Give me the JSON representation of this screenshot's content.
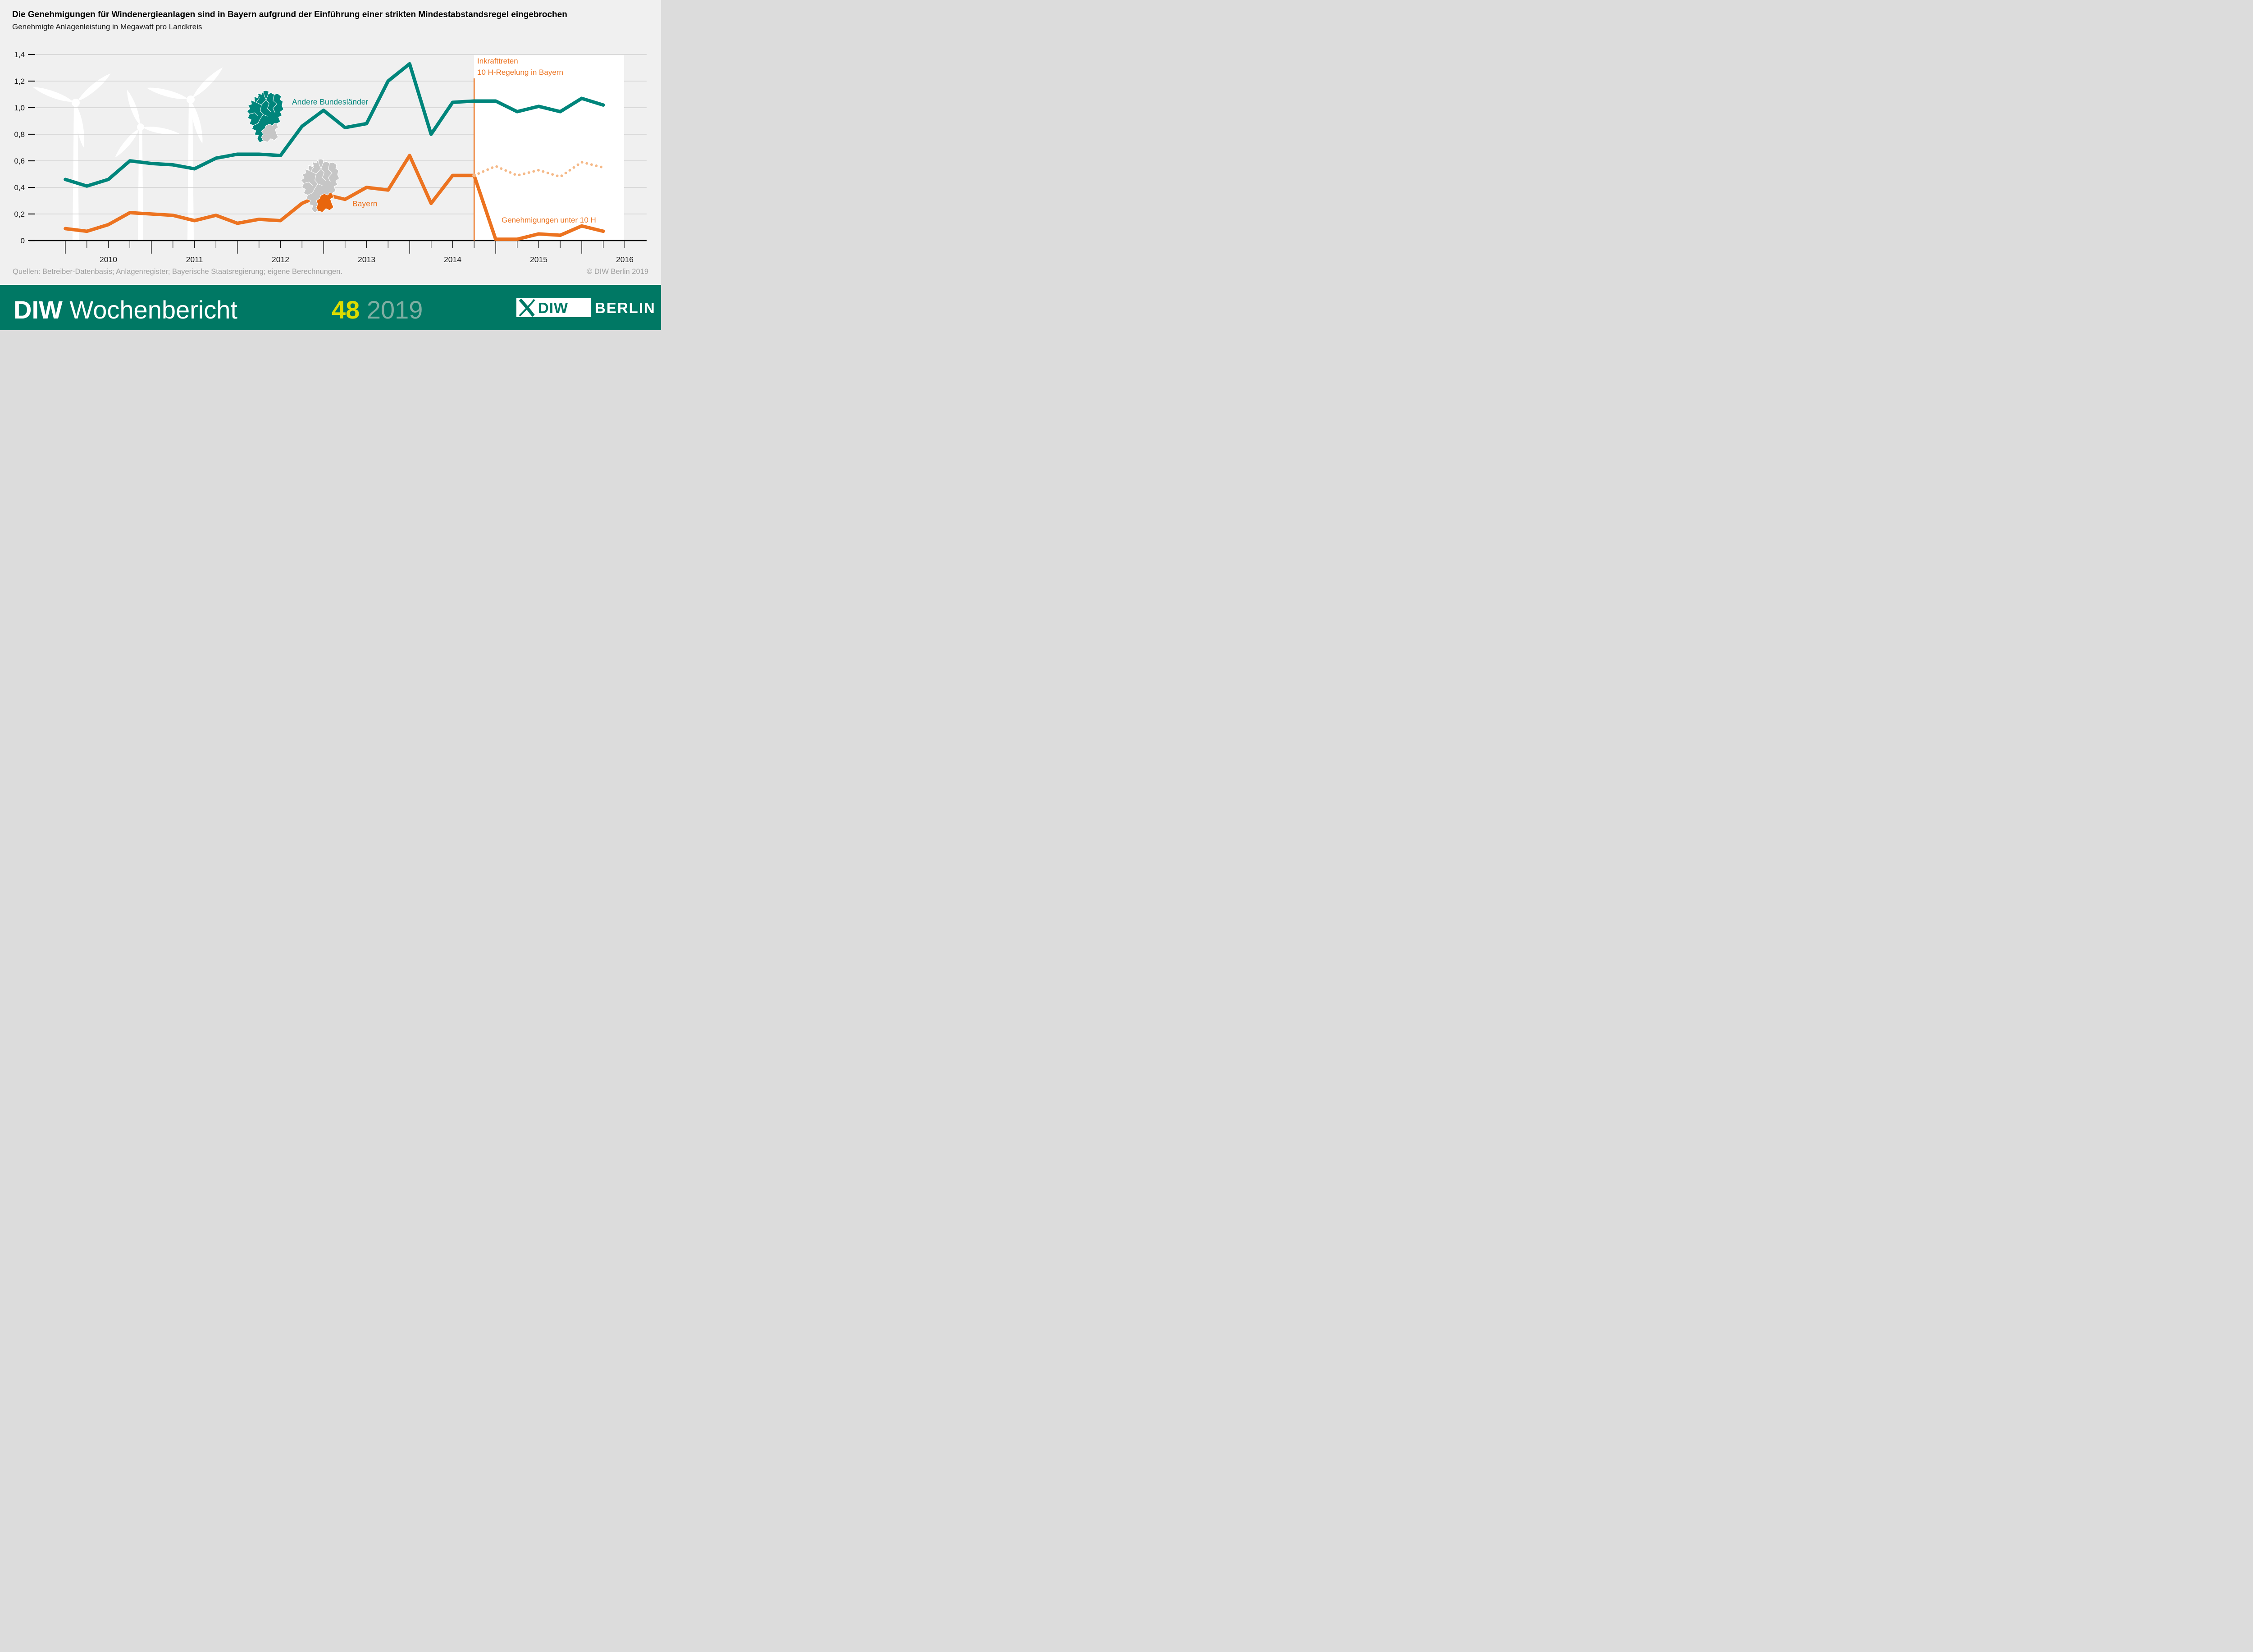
{
  "header": {
    "title": "Die Genehmigungen für Windenergieanlagen sind in Bayern aufgrund der Einführung einer strikten Mindestabstandsregel eingebrochen",
    "subtitle": "Genehmigte Anlagenleistung in Megawatt pro Landkreis"
  },
  "chart_data": {
    "type": "line",
    "title": "Genehmigte Anlagenleistung in Megawatt pro Landkreis",
    "x": [
      "Q1 2010",
      "Q2 2010",
      "Q3 2010",
      "Q4 2010",
      "Q1 2011",
      "Q2 2011",
      "Q3 2011",
      "Q4 2011",
      "Q1 2012",
      "Q2 2012",
      "Q3 2012",
      "Q4 2012",
      "Q1 2013",
      "Q2 2013",
      "Q3 2013",
      "Q4 2013",
      "Q1 2014",
      "Q2 2014",
      "Q3 2014",
      "Q4 2014",
      "Q1 2015",
      "Q2 2015",
      "Q3 2015",
      "Q4 2015",
      "Q1 2016",
      "Q2 2016"
    ],
    "x_axis_year_labels": [
      "2010",
      "2011",
      "2012",
      "2013",
      "2014",
      "2015",
      "2016"
    ],
    "ylabel_ticks": [
      "0",
      "0,2",
      "0,4",
      "0,6",
      "0,8",
      "1,0",
      "1,2",
      "1,4"
    ],
    "ylim": [
      0,
      1.4
    ],
    "grid": "horizontal",
    "legend_position": "inline-labels",
    "series": [
      {
        "name": "Andere Bundesländer",
        "color": "#00857B",
        "style": "solid",
        "values": [
          0.46,
          0.41,
          0.46,
          0.6,
          0.58,
          0.57,
          0.54,
          0.62,
          0.65,
          0.65,
          0.64,
          0.86,
          0.98,
          0.85,
          0.88,
          1.2,
          1.33,
          0.8,
          1.04,
          1.05,
          1.05,
          0.97,
          1.01,
          0.97,
          1.07,
          1.02
        ]
      },
      {
        "name": "Bayern",
        "color": "#EC7320",
        "style": "solid",
        "values": [
          0.09,
          0.07,
          0.12,
          0.21,
          0.2,
          0.19,
          0.15,
          0.19,
          0.13,
          0.16,
          0.15,
          0.28,
          0.35,
          0.31,
          0.4,
          0.38,
          0.64,
          0.28,
          0.49,
          0.49,
          0.01,
          0.01,
          0.05,
          0.04,
          0.11,
          0.07
        ]
      },
      {
        "name": "Genehmigungen unter 10 H",
        "color": "#F5B988",
        "style": "dotted",
        "start_index": 19,
        "values": [
          0.49,
          0.56,
          0.49,
          0.53,
          0.48,
          0.59,
          0.55
        ]
      }
    ],
    "annotations": {
      "event_line_x_quarter": "Q4 2014",
      "event_label_line1": "Inkrafttreten",
      "event_label_line2": "10 H-Regelung  in Bayern",
      "label_other_states": "Andere Bundesländer",
      "label_bavaria": "Bayern",
      "label_under_10h": "Genehmigungen unter 10 H"
    }
  },
  "source_row": {
    "source": "Quellen: Betreiber-Datenbasis; Anlagenregister; Bayerische Staatsregierung; eigene Berechnungen.",
    "copyright": "© DIW Berlin 2019"
  },
  "footer": {
    "brand_bold": "DIW",
    "brand_rest": " Wochenbericht",
    "issue_number": "48",
    "issue_year": "2019",
    "logo_diw": "DIW",
    "logo_berlin": "BERLIN"
  },
  "colors": {
    "background": "#F0F0F0",
    "teal": "#00857B",
    "orange": "#EC7320",
    "light_orange_dotted": "#F5B988",
    "bavaria_map_orange": "#E8660D",
    "map_gray": "#C6C6C6",
    "white_panel": "#FFFFFF",
    "gridline": "#CBCBCB",
    "axis": "#111111",
    "footer_band": "#007864",
    "issue_yellow": "#DCDC00",
    "issue_year_teal": "#7FAFA3",
    "source_gray": "#9E9E9E"
  }
}
